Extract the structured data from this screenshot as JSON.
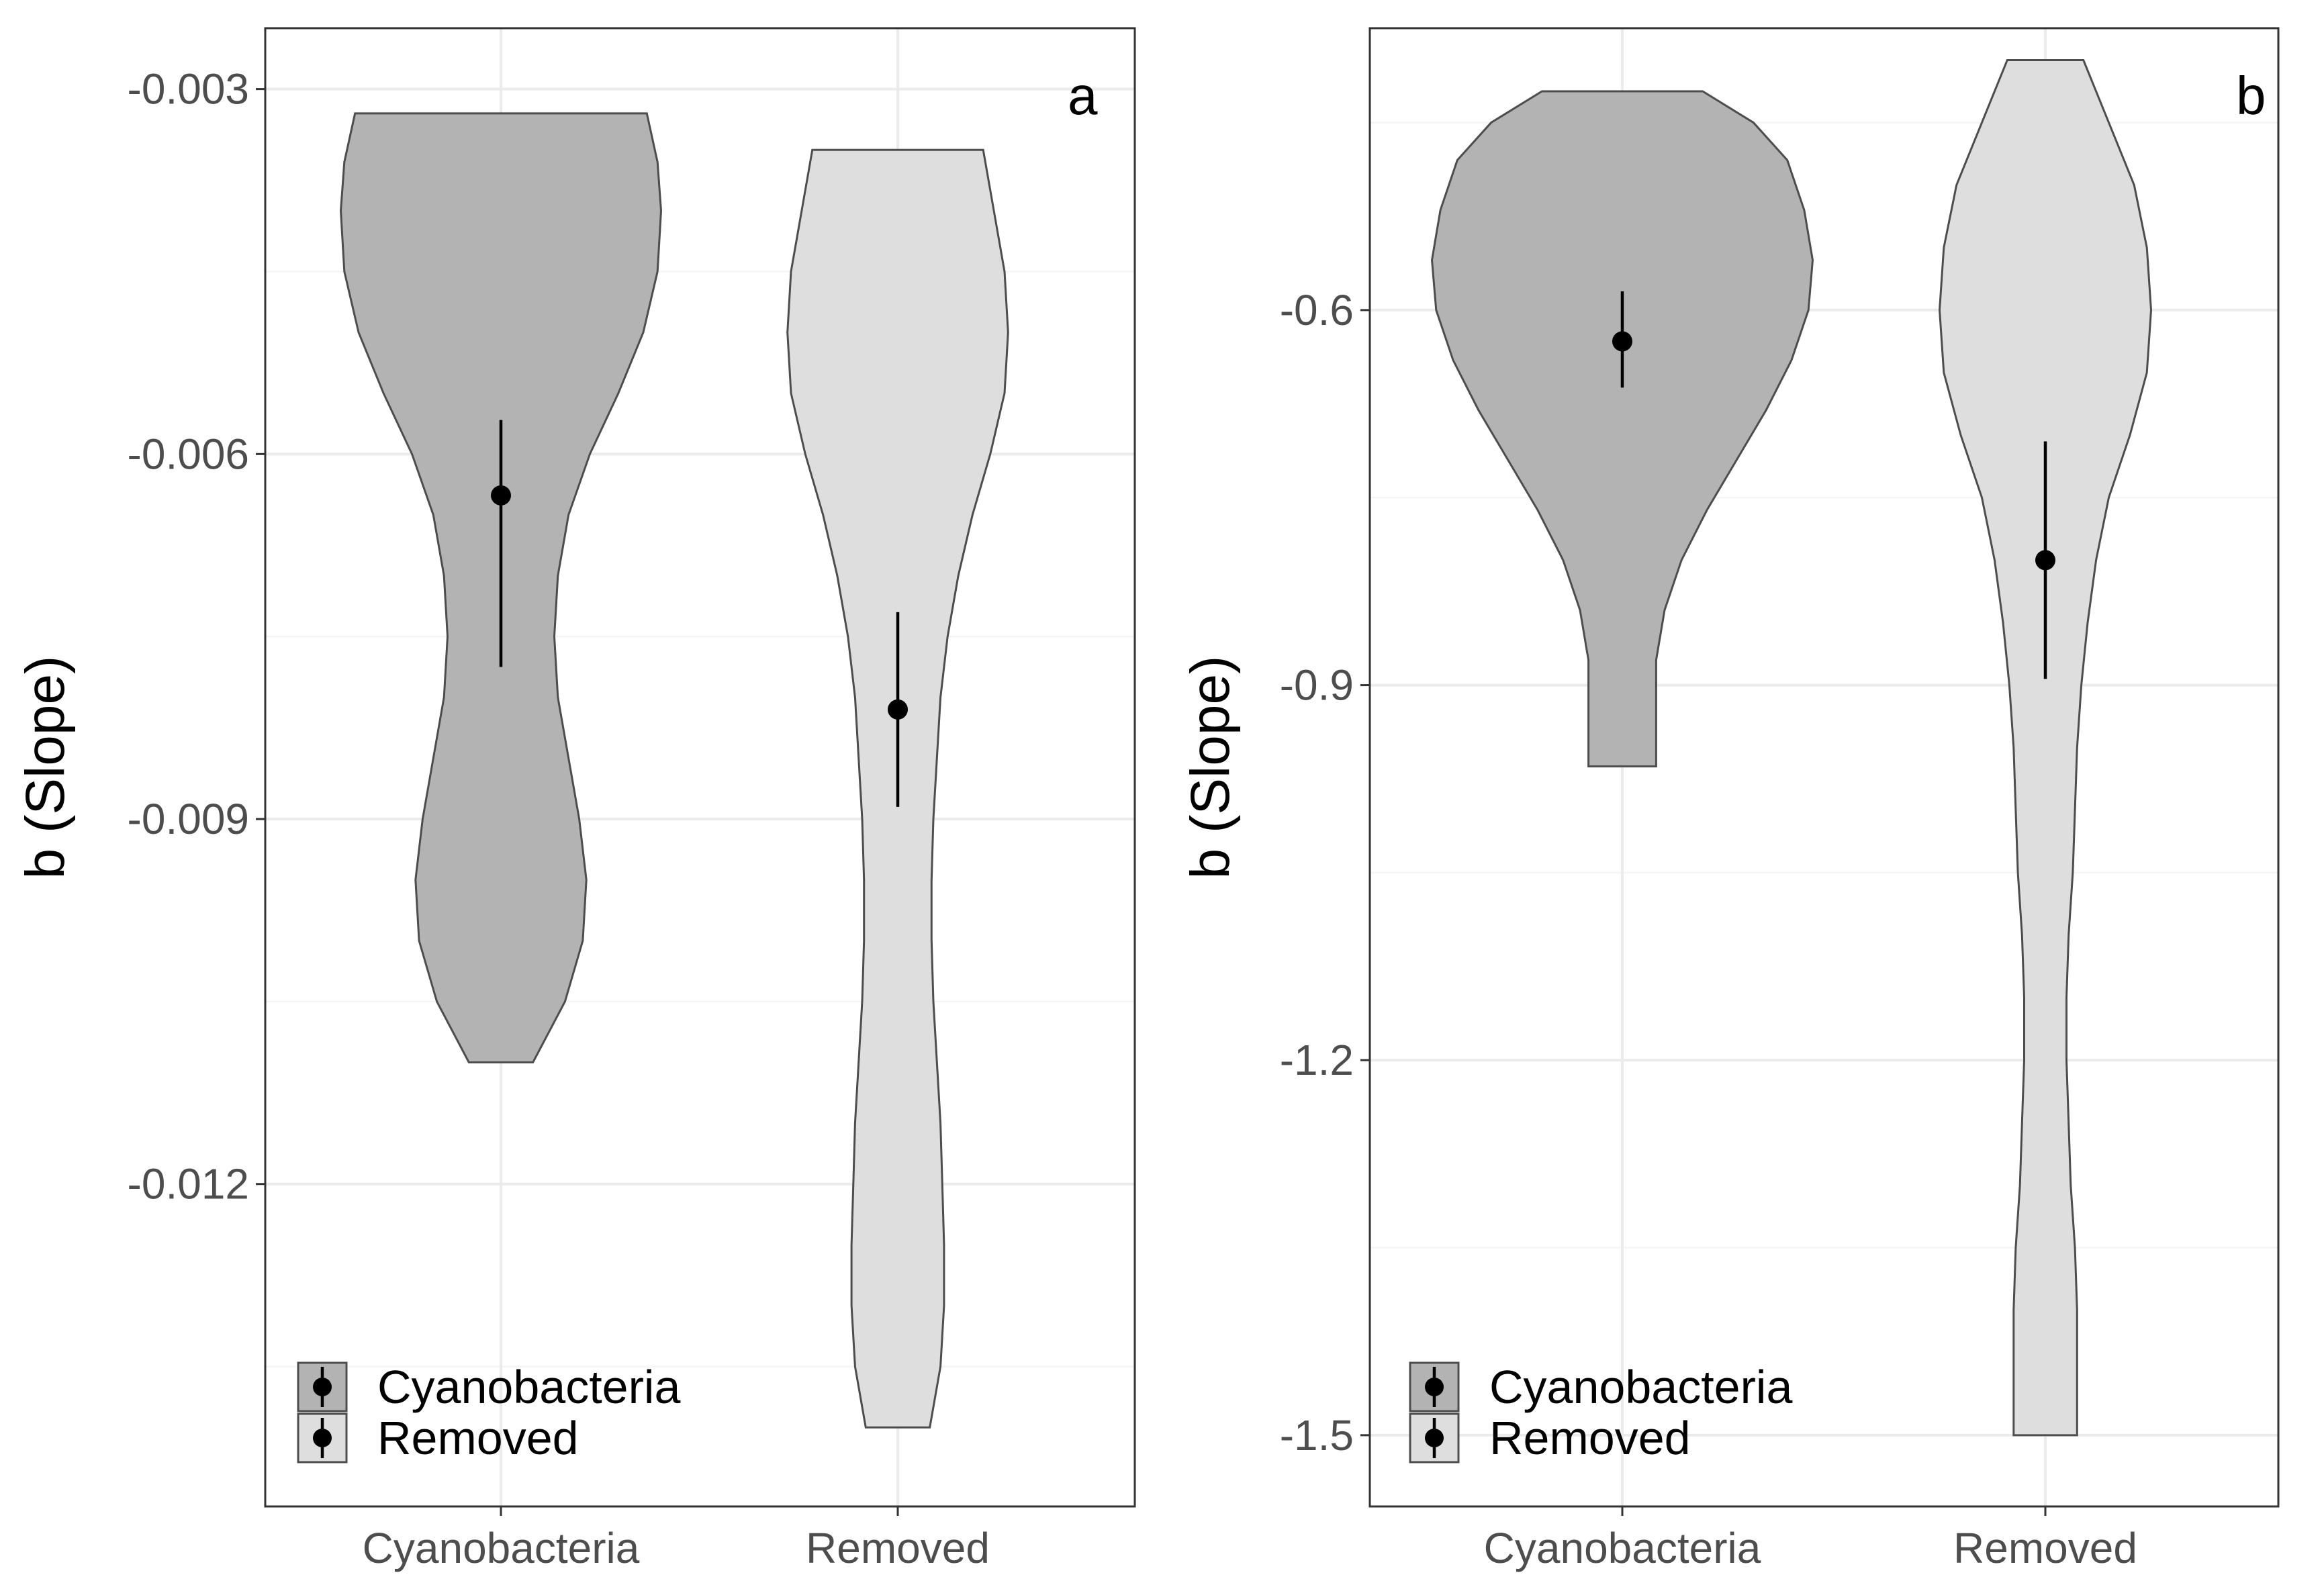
{
  "chart_data": [
    {
      "panel_label": "a",
      "type": "violin",
      "ylabel": "b (Slope)",
      "xlabel": "",
      "categories": [
        "Cyanobacteria",
        "Removed"
      ],
      "ylim": [
        -0.01465,
        -0.0025
      ],
      "yticks": [
        -0.003,
        -0.006,
        -0.009,
        -0.012
      ],
      "ytick_labels": [
        "-0.003",
        "-0.006",
        "-0.009",
        "-0.012"
      ],
      "colors": {
        "Cyanobacteria": "#b3b3b3",
        "Removed": "#dedede"
      },
      "violins": [
        {
          "category": "Cyanobacteria",
          "profile_y": [
            -0.0032,
            -0.0036,
            -0.004,
            -0.0045,
            -0.005,
            -0.0055,
            -0.006,
            -0.0065,
            -0.007,
            -0.0075,
            -0.008,
            -0.0085,
            -0.009,
            -0.0095,
            -0.01,
            -0.0105,
            -0.011
          ],
          "profile_halfwidth": [
            0.41,
            0.44,
            0.45,
            0.44,
            0.4,
            0.33,
            0.25,
            0.19,
            0.16,
            0.15,
            0.16,
            0.19,
            0.22,
            0.24,
            0.23,
            0.18,
            0.09
          ]
        },
        {
          "category": "Removed",
          "profile_y": [
            -0.0035,
            -0.004,
            -0.0045,
            -0.005,
            -0.0055,
            -0.006,
            -0.0065,
            -0.007,
            -0.0075,
            -0.008,
            -0.0085,
            -0.009,
            -0.0095,
            -0.01,
            -0.0105,
            -0.011,
            -0.0115,
            -0.012,
            -0.0125,
            -0.013,
            -0.0135,
            -0.014
          ],
          "profile_halfwidth": [
            0.24,
            0.27,
            0.3,
            0.31,
            0.3,
            0.26,
            0.21,
            0.17,
            0.14,
            0.12,
            0.11,
            0.1,
            0.095,
            0.095,
            0.1,
            0.11,
            0.12,
            0.125,
            0.13,
            0.13,
            0.12,
            0.09
          ]
        }
      ],
      "points": [
        {
          "category": "Cyanobacteria",
          "mean": -0.00634,
          "lower": -0.00775,
          "upper": -0.00572
        },
        {
          "category": "Removed",
          "mean": -0.0081,
          "lower": -0.0089,
          "upper": -0.0073
        }
      ],
      "legend": {
        "placement": "bottom-left",
        "entries": [
          {
            "label": "Cyanobacteria",
            "fill": "#b3b3b3"
          },
          {
            "label": "Removed",
            "fill": "#dedede"
          }
        ]
      }
    },
    {
      "panel_label": "b",
      "type": "violin",
      "ylabel": "b (Slope)",
      "xlabel": "",
      "categories": [
        "Cyanobacteria",
        "Removed"
      ],
      "ylim": [
        -1.557,
        -0.3745
      ],
      "yticks": [
        -0.6,
        -0.9,
        -1.2,
        -1.5
      ],
      "ytick_labels": [
        "-0.6",
        "-0.9",
        "-1.2",
        "-1.5"
      ],
      "colors": {
        "Cyanobacteria": "#b3b3b3",
        "Removed": "#dedede"
      },
      "violins": [
        {
          "category": "Cyanobacteria",
          "profile_y": [
            -0.425,
            -0.45,
            -0.48,
            -0.52,
            -0.56,
            -0.6,
            -0.64,
            -0.68,
            -0.72,
            -0.76,
            -0.8,
            -0.84,
            -0.88,
            -0.92,
            -0.965
          ],
          "profile_halfwidth": [
            0.19,
            0.31,
            0.39,
            0.43,
            0.45,
            0.44,
            0.4,
            0.34,
            0.27,
            0.2,
            0.14,
            0.1,
            0.08,
            0.08,
            0.08
          ]
        },
        {
          "category": "Removed",
          "profile_y": [
            -0.4,
            -0.45,
            -0.5,
            -0.55,
            -0.6,
            -0.65,
            -0.7,
            -0.75,
            -0.8,
            -0.85,
            -0.9,
            -0.95,
            -1.0,
            -1.05,
            -1.1,
            -1.15,
            -1.2,
            -1.25,
            -1.3,
            -1.35,
            -1.4,
            -1.45,
            -1.5
          ],
          "profile_halfwidth": [
            0.09,
            0.15,
            0.21,
            0.24,
            0.25,
            0.24,
            0.2,
            0.15,
            0.12,
            0.1,
            0.085,
            0.075,
            0.07,
            0.065,
            0.055,
            0.05,
            0.05,
            0.055,
            0.06,
            0.07,
            0.075,
            0.075,
            0.075
          ]
        }
      ],
      "points": [
        {
          "category": "Cyanobacteria",
          "mean": -0.625,
          "lower": -0.662,
          "upper": -0.585
        },
        {
          "category": "Removed",
          "mean": -0.8,
          "lower": -0.895,
          "upper": -0.705
        }
      ],
      "legend": {
        "placement": "bottom-left",
        "entries": [
          {
            "label": "Cyanobacteria",
            "fill": "#b3b3b3"
          },
          {
            "label": "Removed",
            "fill": "#dedede"
          }
        ]
      }
    }
  ]
}
